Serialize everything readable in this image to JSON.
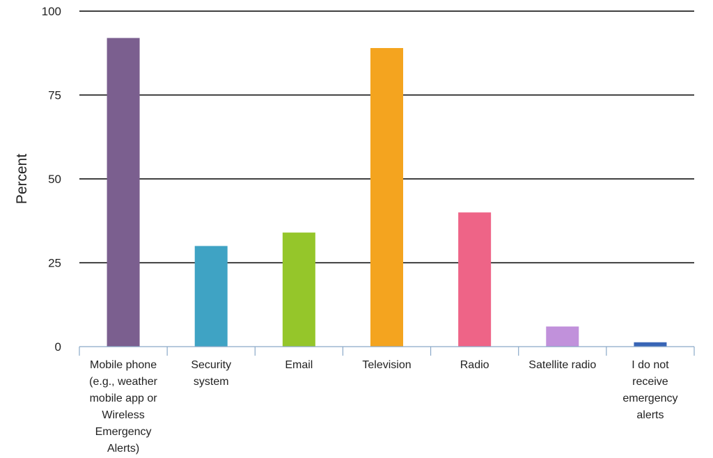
{
  "chart_data": {
    "type": "bar",
    "title": "",
    "xlabel": "",
    "ylabel": "Percent",
    "ylim": [
      0,
      100
    ],
    "yticks": [
      "0",
      "25",
      "50",
      "75",
      "100"
    ],
    "grid": true,
    "categories": [
      [
        "Mobile phone",
        "(e.g., weather",
        "mobile app or",
        "Wireless",
        "Emergency",
        "Alerts)"
      ],
      [
        "Security",
        "system"
      ],
      [
        "Email"
      ],
      [
        "Television"
      ],
      [
        "Radio"
      ],
      [
        "Satellite radio"
      ],
      [
        "I do not",
        "receive",
        "emergency",
        "alerts"
      ]
    ],
    "values": [
      92,
      30,
      34,
      89,
      40,
      6,
      1.3
    ],
    "colors": [
      "#7b5f8f",
      "#3fa3c4",
      "#95c62a",
      "#f4a41f",
      "#ee6487",
      "#c191db",
      "#3865b6"
    ]
  }
}
